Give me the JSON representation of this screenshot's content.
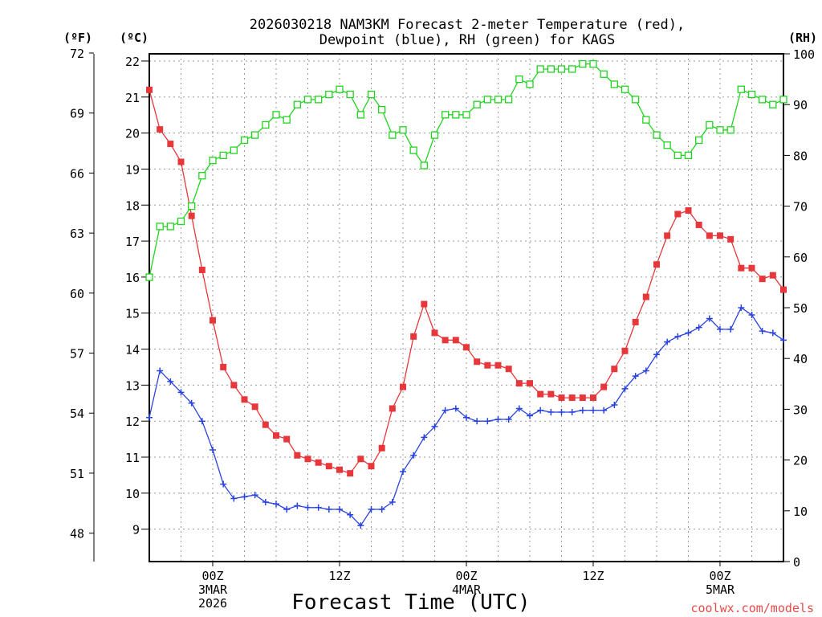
{
  "chart_data": {
    "type": "line",
    "title_line1": "2026030218 NAM3KM Forecast 2-meter Temperature (red),",
    "title_line2": "Dewpoint (blue), RH (green) for KAGS",
    "xlabel": "Forecast Time (UTC)",
    "credit": "coolwx.com/models",
    "left_unit_f": "(ºF)",
    "left_unit_c": "(ºC)",
    "right_unit": "(RH)",
    "x_unit": "hour of forecast period (hourly steps from 2026-03-02 18Z)",
    "x_range": [
      0,
      60
    ],
    "c_range": [
      8.1,
      22.2
    ],
    "rh_range": [
      0,
      100
    ],
    "c_ticks": [
      "9",
      "10",
      "11",
      "12",
      "13",
      "14",
      "15",
      "16",
      "17",
      "18",
      "19",
      "20",
      "21",
      "22"
    ],
    "f_ticks": [
      "48",
      "51",
      "54",
      "57",
      "60",
      "63",
      "66",
      "69",
      "72"
    ],
    "rh_ticks": [
      "0",
      "10",
      "20",
      "30",
      "40",
      "50",
      "60",
      "70",
      "80",
      "90",
      "100"
    ],
    "x_ticks": [
      {
        "x": 6,
        "lines": [
          "00Z",
          "3MAR",
          "2026"
        ]
      },
      {
        "x": 18,
        "lines": [
          "12Z"
        ]
      },
      {
        "x": 30,
        "lines": [
          "00Z",
          "4MAR"
        ]
      },
      {
        "x": 42,
        "lines": [
          "12Z"
        ]
      },
      {
        "x": 54,
        "lines": [
          "00Z",
          "5MAR"
        ]
      }
    ],
    "series": [
      {
        "name": "2-meter Temperature",
        "units": "C",
        "color": "#e8373b",
        "marker": "filled-square",
        "axis": "left",
        "values": [
          21.2,
          20.1,
          19.7,
          19.2,
          17.7,
          16.2,
          14.8,
          13.5,
          13.0,
          12.6,
          12.4,
          11.9,
          11.6,
          11.5,
          11.05,
          10.95,
          10.85,
          10.75,
          10.65,
          10.55,
          10.95,
          10.75,
          11.25,
          12.35,
          12.95,
          14.35,
          15.25,
          14.45,
          14.25,
          14.25,
          14.05,
          13.65,
          13.55,
          13.55,
          13.45,
          13.05,
          13.05,
          12.75,
          12.75,
          12.65,
          12.65,
          12.65,
          12.65,
          12.95,
          13.45,
          13.95,
          14.75,
          15.45,
          16.35,
          17.15,
          17.75,
          17.85,
          17.45,
          17.15,
          17.15,
          17.05,
          16.25,
          16.25,
          15.95,
          16.05,
          15.65
        ]
      },
      {
        "name": "Dewpoint",
        "units": "C",
        "color": "#2a43e0",
        "marker": "plus",
        "axis": "left",
        "values": [
          12.1,
          13.4,
          13.1,
          12.8,
          12.5,
          12.0,
          11.2,
          10.25,
          9.85,
          9.9,
          9.95,
          9.75,
          9.7,
          9.55,
          9.65,
          9.6,
          9.6,
          9.55,
          9.55,
          9.4,
          9.1,
          9.55,
          9.55,
          9.75,
          10.6,
          11.05,
          11.55,
          11.85,
          12.3,
          12.35,
          12.1,
          12.0,
          12.0,
          12.05,
          12.05,
          12.35,
          12.15,
          12.3,
          12.25,
          12.25,
          12.25,
          12.3,
          12.3,
          12.3,
          12.45,
          12.9,
          13.25,
          13.4,
          13.85,
          14.2,
          14.35,
          14.45,
          14.6,
          14.85,
          14.55,
          14.55,
          15.15,
          14.95,
          14.5,
          14.45,
          14.25
        ]
      },
      {
        "name": "RH",
        "units": "%",
        "color": "#22d322",
        "marker": "open-square",
        "axis": "right",
        "values": [
          56,
          66,
          66,
          67,
          70,
          76,
          79,
          80,
          81,
          83,
          84,
          86,
          88,
          87,
          90,
          91,
          91,
          92,
          93,
          92,
          88,
          92,
          89,
          84,
          85,
          81,
          78,
          84,
          88,
          88,
          88,
          90,
          91,
          91,
          91,
          95,
          94,
          97,
          97,
          97,
          97,
          98,
          98,
          96,
          94,
          93,
          91,
          87,
          84,
          82,
          80,
          80,
          83,
          86,
          85,
          85,
          93,
          92,
          91,
          90,
          91
        ]
      }
    ]
  }
}
